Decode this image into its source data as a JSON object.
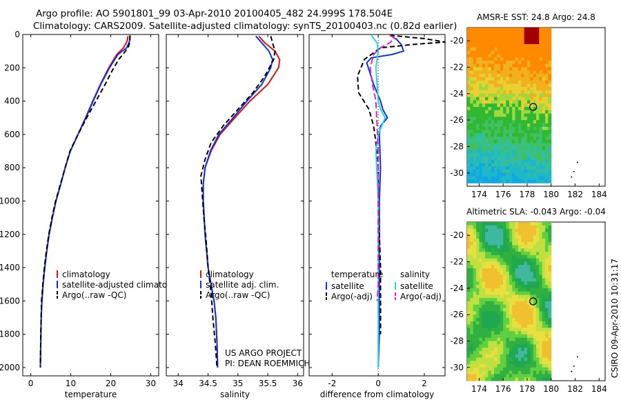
{
  "header": {
    "line1": "Argo profile: AO 5901801_99 03-Apr-2010 20100405_482 24.999S 178.504E",
    "line2": "Climatology: CARS2009. Satellite-adjusted climatology: synTS_20100403.nc (0.82d earlier)"
  },
  "footer": {
    "project": "US ARGO PROJECT",
    "pi": "PI: DEAN ROEMMICH",
    "stamp": "CSIRO 09-Apr-2010 10:31:17"
  },
  "colors": {
    "climatology": "#e01010",
    "satellite": "#1030e0",
    "argo": "#000000",
    "sal_satellite": "#20d8e8",
    "sal_argo": "#e020d0"
  },
  "chart_data": [
    {
      "id": "temperature",
      "type": "line",
      "xlabel": "temperature",
      "xlim": [
        -2,
        32
      ],
      "ylim": [
        2050,
        0
      ],
      "xticks": [
        0,
        10,
        20,
        30
      ],
      "yticks": [
        0,
        200,
        400,
        600,
        800,
        1000,
        1200,
        1400,
        1600,
        1800,
        2000
      ],
      "legend": [
        "climatology",
        "satellite-adjusted climatology",
        "Argo(..raw -QC)"
      ],
      "legend_position": "lower-center",
      "series": [
        {
          "name": "climatology",
          "color": "climatology",
          "dash": "",
          "x": [
            24.3,
            24.1,
            23.2,
            21.5,
            19.5,
            17.4,
            15.5,
            13.7,
            11.8,
            9.9,
            8.6,
            7.5,
            6.3,
            5.4,
            4.6,
            4.0,
            3.5,
            3.1,
            2.8,
            2.6,
            2.5,
            2.4
          ],
          "y": [
            10,
            40,
            80,
            120,
            200,
            300,
            400,
            500,
            600,
            700,
            800,
            900,
            1000,
            1100,
            1200,
            1300,
            1400,
            1500,
            1600,
            1700,
            1850,
            2000
          ]
        },
        {
          "name": "satellite-adjusted climatology",
          "color": "satellite",
          "dash": "",
          "x": [
            24.8,
            24.7,
            24.0,
            21.8,
            19.7,
            17.5,
            15.6,
            13.8,
            11.8,
            9.9,
            8.6,
            7.5,
            6.3,
            5.4,
            4.6,
            4.0,
            3.5,
            3.1,
            2.8,
            2.6,
            2.5,
            2.4
          ],
          "y": [
            10,
            40,
            80,
            120,
            200,
            300,
            400,
            500,
            600,
            700,
            800,
            900,
            1000,
            1100,
            1200,
            1300,
            1400,
            1500,
            1600,
            1700,
            1850,
            2000
          ]
        },
        {
          "name": "Argo(..raw -QC)",
          "color": "argo",
          "dash": "7,4",
          "x": [
            24.8,
            24.8,
            24.5,
            23.7,
            22.0,
            20.3,
            18.6,
            16.3,
            14.0,
            11.8,
            9.8,
            8.6,
            7.4,
            6.2,
            5.3,
            4.5,
            3.9,
            3.4,
            3.0,
            2.7,
            2.5,
            2.4
          ],
          "y": [
            5,
            40,
            70,
            100,
            150,
            220,
            300,
            400,
            500,
            600,
            700,
            800,
            900,
            1000,
            1100,
            1200,
            1300,
            1400,
            1500,
            1600,
            1800,
            2000
          ]
        }
      ]
    },
    {
      "id": "salinity",
      "type": "line",
      "xlabel": "salinity",
      "xlim": [
        33.8,
        36.1
      ],
      "ylim": [
        2050,
        0
      ],
      "xticks": [
        34,
        34.5,
        35,
        35.5,
        36
      ],
      "yticks": [
        0,
        200,
        400,
        600,
        800,
        1000,
        1200,
        1400,
        1600,
        1800,
        2000
      ],
      "legend": [
        "climatology",
        "satellite adj. clim.",
        "Argo(..raw -QC)"
      ],
      "legend_position": "lower-center",
      "series": [
        {
          "name": "climatology",
          "color": "climatology",
          "dash": "",
          "x": [
            35.35,
            35.45,
            35.62,
            35.7,
            35.68,
            35.5,
            35.2,
            34.95,
            34.7,
            34.55,
            34.45,
            34.42,
            34.42,
            34.45,
            34.5,
            34.55,
            34.6,
            34.63,
            34.65,
            34.66
          ],
          "y": [
            10,
            50,
            100,
            150,
            200,
            300,
            400,
            500,
            600,
            700,
            800,
            900,
            1000,
            1200,
            1400,
            1500,
            1600,
            1700,
            1850,
            2000
          ]
        },
        {
          "name": "satellite adj. clim.",
          "color": "satellite",
          "dash": "",
          "x": [
            35.3,
            35.4,
            35.52,
            35.58,
            35.55,
            35.4,
            35.15,
            34.92,
            34.68,
            34.54,
            34.45,
            34.42,
            34.42,
            34.45,
            34.5,
            34.55,
            34.6,
            34.63,
            34.65,
            34.66
          ],
          "y": [
            10,
            50,
            100,
            150,
            200,
            300,
            400,
            500,
            600,
            700,
            800,
            900,
            1000,
            1200,
            1400,
            1500,
            1600,
            1700,
            1850,
            2000
          ]
        },
        {
          "name": "Argo(..raw -QC)",
          "color": "argo",
          "dash": "7,4",
          "x": [
            35.55,
            35.58,
            35.62,
            35.6,
            35.45,
            35.25,
            35.0,
            34.75,
            34.55,
            34.45,
            34.38,
            34.4,
            34.43,
            34.47,
            34.5,
            34.55,
            34.58,
            34.62,
            34.65
          ],
          "y": [
            10,
            50,
            100,
            150,
            250,
            350,
            450,
            550,
            650,
            750,
            850,
            950,
            1100,
            1250,
            1400,
            1550,
            1700,
            1850,
            2000
          ]
        }
      ]
    },
    {
      "id": "difference",
      "type": "line",
      "xlabel": "difference from climatology",
      "xlim": [
        -3.0,
        2.9
      ],
      "ylim": [
        2050,
        0
      ],
      "xticks": [
        -2,
        0,
        2
      ],
      "yticks": [
        0,
        200,
        400,
        600,
        800,
        1000,
        1200,
        1400,
        1600,
        1800,
        2000
      ],
      "legend_groups": [
        {
          "title": "temperature",
          "items": [
            "satellite",
            "Argo(-adj)"
          ]
        },
        {
          "title": "salinity",
          "items": [
            "satellite",
            "Argo(-adj)"
          ]
        }
      ],
      "legend_position": "lower-center",
      "series": [
        {
          "name": "temperature satellite",
          "color": "satellite",
          "dash": "",
          "x": [
            0.5,
            0.8,
            1.0,
            1.1,
            0.6,
            -0.3,
            -0.5,
            -0.2,
            0.1,
            0.2,
            0.4,
            0.1,
            0.05,
            0.1,
            0.05,
            0.05,
            0.05,
            0.0
          ],
          "y": [
            5,
            30,
            60,
            100,
            120,
            140,
            170,
            300,
            400,
            450,
            500,
            550,
            600,
            800,
            1000,
            1400,
            1800,
            2000
          ]
        },
        {
          "name": "temperature Argo(-adj)",
          "color": "argo",
          "dash": "7,4",
          "x": [
            0.5,
            2.0,
            2.9,
            1.5,
            0.1,
            -0.6,
            -0.9,
            -0.85,
            -0.4,
            -0.2,
            -0.1,
            0.0,
            0.0,
            0.05,
            0.1,
            0.1,
            0.1
          ],
          "y": [
            5,
            25,
            45,
            60,
            80,
            150,
            250,
            350,
            450,
            550,
            650,
            800,
            1000,
            1200,
            1400,
            1600,
            1800
          ]
        },
        {
          "name": "salinity satellite",
          "color": "sal_satellite",
          "dash": "",
          "x": [
            -0.3,
            -0.05,
            0.0,
            -0.1,
            -0.05,
            0.0,
            0.1,
            0.3,
            0.0,
            -0.1,
            0.0,
            0.0,
            0.0
          ],
          "y": [
            5,
            50,
            100,
            200,
            300,
            400,
            450,
            500,
            600,
            700,
            1000,
            1500,
            2000
          ]
        },
        {
          "name": "salinity Argo(-adj)",
          "color": "sal_argo",
          "dash": "9,4",
          "x": [
            0.5,
            0.7,
            0.5,
            0.1,
            -0.2,
            -0.35,
            -0.25,
            -0.1,
            -0.05,
            0.0,
            0.0,
            0.0,
            0.0,
            0.0,
            -0.05
          ],
          "y": [
            5,
            20,
            50,
            80,
            120,
            200,
            300,
            400,
            550,
            700,
            900,
            1100,
            1300,
            1500,
            1600
          ]
        }
      ]
    },
    {
      "id": "sst_map",
      "type": "heatmap",
      "title": "AMSR-E SST: 24.8 Argo: 24.8",
      "xlim": [
        173,
        184.5
      ],
      "ylim": [
        -31,
        -19
      ],
      "xticks": [
        174,
        176,
        178,
        180,
        182,
        184
      ],
      "yticks": [
        -20,
        -22,
        -24,
        -26,
        -28,
        -30
      ],
      "data_extent": {
        "lon": [
          173,
          180
        ],
        "lat": [
          -30.6,
          -19
        ]
      },
      "marker": {
        "lon": 178.504,
        "lat": -24.999
      }
    },
    {
      "id": "sla_map",
      "type": "heatmap",
      "title": "Altimetric SLA: -0.043 Argo: -0.04",
      "xlim": [
        173,
        184.5
      ],
      "ylim": [
        -31,
        -19
      ],
      "xticks": [
        174,
        176,
        178,
        180,
        182,
        184
      ],
      "yticks": [
        -20,
        -22,
        -24,
        -26,
        -28,
        -30
      ],
      "data_extent": {
        "lon": [
          173,
          180
        ],
        "lat": [
          -31,
          -19
        ]
      },
      "marker": {
        "lon": 178.504,
        "lat": -24.999
      }
    }
  ]
}
